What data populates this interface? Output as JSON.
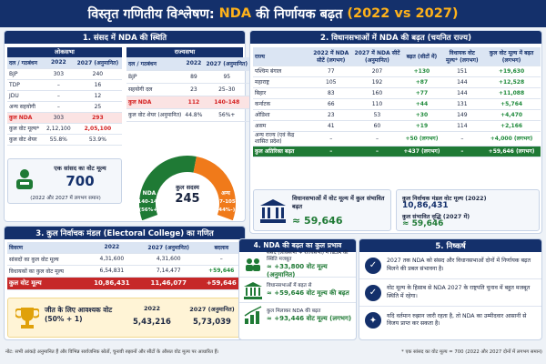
{
  "title": {
    "prefix": "विस्तृत गणितीय विश्लेषण:",
    "nda": "NDA",
    "mid": "की निर्णायक बढ़त",
    "years": "(2022 vs 2027)"
  },
  "sec1": {
    "heading": "1. संसद में NDA की स्थिति",
    "loksabha": {
      "label": "लोकसभा",
      "headers": [
        "दल / गठबंधन",
        "2022",
        "2027 (अनुमानित)"
      ],
      "rows": [
        [
          "BJP",
          "303",
          "240"
        ],
        [
          "TDP",
          "–",
          "16"
        ],
        [
          "JDU",
          "–",
          "12"
        ],
        [
          "अन्य सहयोगी",
          "–",
          "25"
        ]
      ],
      "nda_row": [
        "कुल NDA",
        "303",
        "293"
      ],
      "vote_row": [
        "कुल वोट मूल्य*",
        "2,12,100",
        "2,05,100"
      ],
      "share_row": [
        "कुल वोट शेयर",
        "55.8%",
        "53.9%"
      ]
    },
    "rajyasabha": {
      "label": "राज्यसभा",
      "headers": [
        "दल / गठबंधन",
        "2022",
        "2027 (अनुमानित)"
      ],
      "rows": [
        [
          "BJP",
          "89",
          "95"
        ],
        [
          "सहयोगी दल",
          "23",
          "25–30"
        ]
      ],
      "nda_row": [
        "कुल NDA",
        "112",
        "140–148"
      ],
      "share_row": [
        "कुल वोट शेयर (अनुमानित)",
        "44.8%",
        "56%+"
      ]
    },
    "mp_vote": {
      "label": "एक सांसद का वोट मूल्य",
      "value": "700",
      "note": "(2022 और 2027 में लगभग समान)"
    },
    "donut": {
      "center_label": "कुल सदस्य",
      "center_value": "245",
      "nda_label": "NDA",
      "nda_range": "140-148",
      "nda_pct": "(56%+)",
      "other_label": "अन्य",
      "other_range": "97-105",
      "other_pct": "(44%-)",
      "nda_fraction": 0.56,
      "nda_color": "#1f7a35",
      "other_color": "#f07a1a"
    }
  },
  "sec2": {
    "heading": "2. विधानसभाओं में NDA की बढ़त (चयनित राज्य)",
    "headers": [
      "राज्य",
      "2022 में NDA सीटें (लगभग)",
      "2027 में NDA सीटें (अनुमानित)",
      "बढ़त (सीटों में)",
      "विधायक वोट मूल्य* (लगभग)",
      "कुल वोट मूल्य में बढ़त (लगभग)"
    ],
    "rows": [
      [
        "पश्चिम बंगाल",
        "77",
        "207",
        "+130",
        "151",
        "+19,630"
      ],
      [
        "महाराष्ट्र",
        "105",
        "192",
        "+87",
        "144",
        "+12,528"
      ],
      [
        "बिहार",
        "83",
        "160",
        "+77",
        "144",
        "+11,088"
      ],
      [
        "कर्नाटक",
        "66",
        "110",
        "+44",
        "131",
        "+5,764"
      ],
      [
        "ओडिशा",
        "23",
        "53",
        "+30",
        "149",
        "+4,470"
      ],
      [
        "असम",
        "41",
        "60",
        "+19",
        "114",
        "+2,166"
      ],
      [
        "अन्य राज्य (एवं केंद्र शासित प्रदेश)",
        "–",
        "–",
        "+50 (लगभग)",
        "–",
        "+4,000 (लगभग)"
      ]
    ],
    "total_row": [
      "कुल अतिरिक्त बढ़त",
      "–",
      "–",
      "+437 (लगभग)",
      "–",
      "+59,646 (लगभग)"
    ],
    "vote_box": {
      "label": "विधानसभाओं में वोट मूल्य में कुल संभावित बढ़त",
      "value": "≈ 59,646"
    },
    "college_box": {
      "label1": "कुल निर्वाचक मंडल वोट मूल्य (2022)",
      "value1": "10,86,431",
      "label2": "कुल संभावित वृद्धि (2027 में)",
      "value2": "≈ 59,646"
    }
  },
  "sec3": {
    "heading": "3. कुल निर्वाचक मंडल (Electoral College) का गणित",
    "headers": [
      "विवरण",
      "2022",
      "2027 (अनुमानित)",
      "बदलाव"
    ],
    "rows": [
      [
        "सांसदों का कुल वोट मूल्य",
        "4,31,600",
        "4,31,600",
        "–"
      ],
      [
        "विधायकों का कुल वोट मूल्य",
        "6,54,831",
        "7,14,477",
        "+59,646"
      ]
    ],
    "total_row": [
      "कुल वोट मूल्य",
      "10,86,431",
      "11,46,077",
      "+59,646"
    ],
    "win": {
      "label": "जीत के लिए आवश्यक वोट (50% + 1)",
      "h1": "2022",
      "v1": "5,43,216",
      "h2": "2027 (अनुमानित)",
      "v2": "5,73,039"
    }
  },
  "sec4": {
    "heading": "4. NDA की बढ़त का कुल प्रभाव",
    "items": [
      {
        "text": "संसद (लोकसभा + राज्यसभा) में NDA की स्थिति मजबूत",
        "value": "≈ +33,800 वोट मूल्य (अनुमानित)"
      },
      {
        "text": "विधानसभाओं में बढ़त से",
        "value": "≈ +59,646 वोट मूल्य की बढ़त"
      },
      {
        "text": "कुल मिलाकर NDA की बढ़त",
        "value": "≈ +93,446 वोट मूल्य (लगभग)"
      }
    ]
  },
  "sec5": {
    "heading": "5. निष्कर्ष",
    "items": [
      "2027 तक NDA को संसद और विधानसभाओं दोनों में निर्णायक बढ़त मिलने की प्रबल संभावना है।",
      "वोट मूल्य के हिसाब से NDA 2027 के राष्ट्रपति चुनाव में बहुत मजबूत स्थिति में रहेगा।",
      "यदि वर्तमान रुझान जारी रहता है, तो NDA का उम्मीदवार आसानी से विजय प्राप्त कर सकता है।"
    ]
  },
  "footer": {
    "left": "नोट: सभी आंकड़े अनुमानित हैं और विभिन्न सार्वजनिक स्रोतों, चुनावी रुझानों और सीटों के औसत वोट मूल्य पर आधारित हैं।",
    "right": "* एक सांसद का वोट मूल्य = 700 (2022 और 2027 दोनों में लगभग समान)"
  }
}
